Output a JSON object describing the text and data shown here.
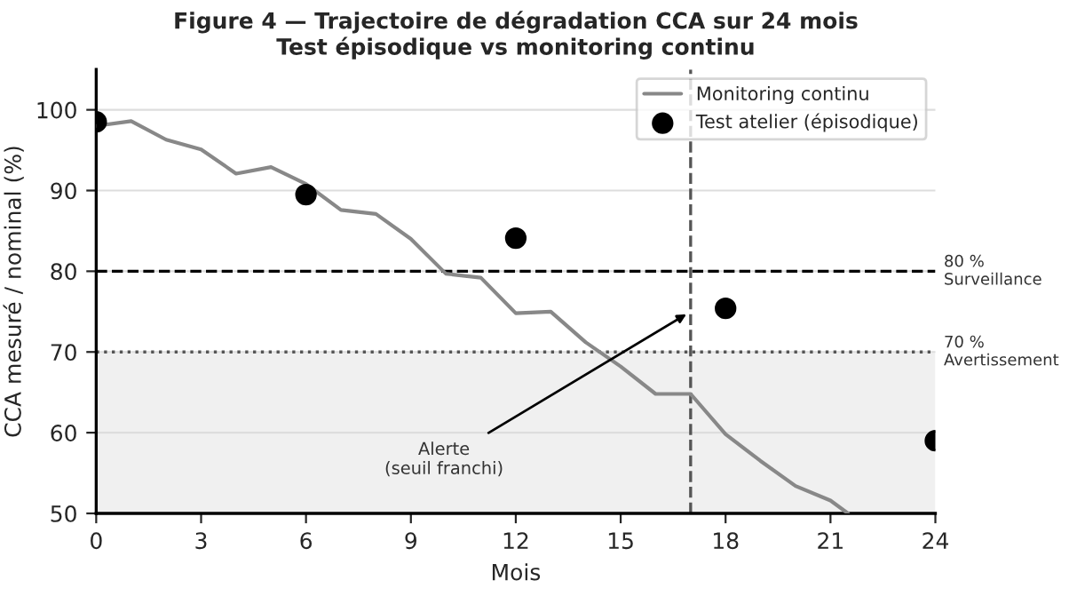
{
  "chart_data": {
    "type": "line",
    "title": "Figure 4 — Trajectoire de dégradation CCA sur 24 mois\nTest épisodique vs monitoring continu",
    "xlabel": "Mois",
    "ylabel": "CCA mesuré / nominal (%)",
    "series": [
      {
        "name": "Monitoring continu",
        "color": "#888888",
        "x": [
          0,
          1,
          2,
          3,
          4,
          5,
          6,
          7,
          8,
          9,
          10,
          11,
          12,
          13,
          14,
          15,
          16,
          17,
          18,
          19,
          20,
          21,
          21.5
        ],
        "values": [
          98,
          98.6,
          96.3,
          95.1,
          92.1,
          92.9,
          90.8,
          87.6,
          87.1,
          84,
          79.7,
          79.2,
          74.8,
          75,
          71.2,
          68.2,
          64.8,
          64.8,
          59.8,
          56.5,
          53.4,
          51.6,
          50
        ]
      },
      {
        "name": "Test atelier (épisodique)",
        "type": "scatter",
        "color": "#000000",
        "marker": "circle",
        "x": [
          0,
          6,
          12,
          18,
          24
        ],
        "values": [
          98.5,
          89.5,
          84.1,
          75.4,
          59
        ]
      }
    ],
    "xlim": [
      0,
      24
    ],
    "xticks": [
      0,
      3,
      6,
      9,
      12,
      15,
      18,
      21,
      24
    ],
    "ylim": [
      50,
      105
    ],
    "yticks": [
      50,
      60,
      70,
      80,
      90,
      100
    ],
    "ref_lines": [
      {
        "axis": "y",
        "value": 80,
        "label": "80 %\nSurveillance",
        "color": "#000000",
        "line_style": "dashed"
      },
      {
        "axis": "y",
        "value": 70,
        "label": "70 %\nAvertissement",
        "color": "#555555",
        "line_style": "dotted"
      },
      {
        "axis": "x",
        "value": 17,
        "color": "#555555",
        "line_style": "dashed"
      }
    ],
    "bands": [
      {
        "axis": "y",
        "from": 50,
        "to": 70,
        "color": "#f0f0f0"
      }
    ],
    "annotations": [
      {
        "text": "Alerte\n(seuil franchi)",
        "x": 17,
        "y": 75
      }
    ],
    "grid": "y",
    "legend": "top right"
  }
}
